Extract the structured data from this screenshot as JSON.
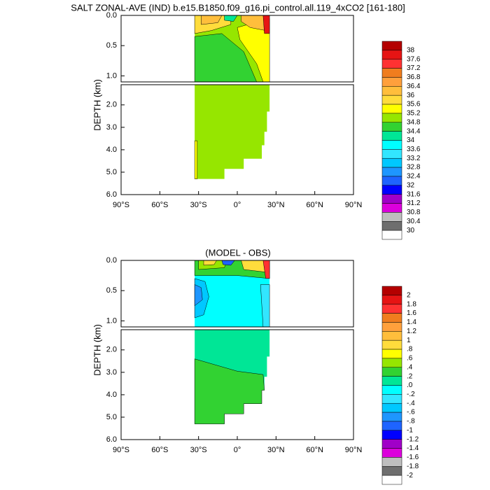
{
  "chart_data": [
    {
      "type": "contour",
      "title": "SALT ZONAL-AVE (IND) b.e15.B1850.f09_g16.pi_control.all.119_4xCO2 [161-180]",
      "ylabel": "DEPTH (km)",
      "xlim": [
        -90,
        90
      ],
      "xticks": [
        {
          "value": -90,
          "label": "90°S"
        },
        {
          "value": -60,
          "label": "60°S"
        },
        {
          "value": -30,
          "label": "30°S"
        },
        {
          "value": 0,
          "label": "0°"
        },
        {
          "value": 30,
          "label": "30°N"
        },
        {
          "value": 60,
          "label": "60°N"
        },
        {
          "value": 90,
          "label": "90°N"
        }
      ],
      "panels": [
        {
          "ylim": [
            0,
            1.1
          ],
          "yticks": [
            {
              "value": 0,
              "label": "0.0"
            },
            {
              "value": 0.5,
              "label": "0.5"
            },
            {
              "value": 1,
              "label": "1.0"
            }
          ]
        },
        {
          "ylim": [
            1.1,
            6
          ],
          "yticks": [
            {
              "value": 2,
              "label": "2.0"
            },
            {
              "value": 3,
              "label": "3.0"
            },
            {
              "value": 4,
              "label": "4.0"
            },
            {
              "value": 5,
              "label": "5.0"
            },
            {
              "value": 6,
              "label": "6.0"
            }
          ]
        }
      ],
      "field_values": [
        35.0,
        35.0,
        34.6,
        35.4,
        35.8,
        36.2,
        36.2,
        37.8,
        34.2,
        35.4
      ],
      "colorbar": {
        "levels": [
          38,
          37.6,
          37.2,
          36.8,
          36.4,
          36,
          35.6,
          35.2,
          34.8,
          34.4,
          34,
          33.6,
          33.2,
          32.8,
          32.4,
          32,
          31.6,
          31.2,
          30.8,
          30.4,
          30
        ],
        "colors": [
          "#b40000",
          "#e61414",
          "#ff3232",
          "#f07d1e",
          "#ffa03c",
          "#ffbe3c",
          "#ffdc3c",
          "#ffff00",
          "#96e600",
          "#32d232",
          "#00e696",
          "#00ffff",
          "#32e6ff",
          "#00c8ff",
          "#1e96ff",
          "#1e64ff",
          "#0000ff",
          "#a000c8",
          "#dc00dc",
          "#bebebe",
          "#6e6e6e",
          "#ffffff"
        ]
      }
    },
    {
      "type": "contour",
      "title": "(MODEL - OBS)",
      "ylabel": "DEPTH (km)",
      "xlim": [
        -90,
        90
      ],
      "xticks": [
        {
          "value": -90,
          "label": "90°S"
        },
        {
          "value": -60,
          "label": "60°S"
        },
        {
          "value": -30,
          "label": "30°S"
        },
        {
          "value": 0,
          "label": "0°"
        },
        {
          "value": 30,
          "label": "30°N"
        },
        {
          "value": 60,
          "label": "60°N"
        },
        {
          "value": 90,
          "label": "90°N"
        }
      ],
      "panels": [
        {
          "ylim": [
            0,
            1.1
          ],
          "yticks": [
            {
              "value": 0,
              "label": "0.0"
            },
            {
              "value": 0.5,
              "label": "0.5"
            },
            {
              "value": 1,
              "label": "1.0"
            }
          ]
        },
        {
          "ylim": [
            1.1,
            6
          ],
          "yticks": [
            {
              "value": 2,
              "label": "2.0"
            },
            {
              "value": 3,
              "label": "3.0"
            },
            {
              "value": 4,
              "label": "4.0"
            },
            {
              "value": 5,
              "label": "5.0"
            },
            {
              "value": 6,
              "label": "6.0"
            }
          ]
        }
      ],
      "field_values": [
        -0.1,
        0.1,
        0.3,
        -0.5,
        -0.7,
        0.3,
        0.5,
        0.9,
        -0.9,
        0.9,
        1.7,
        -0.3
      ],
      "colorbar": {
        "levels": [
          2,
          1.8,
          1.6,
          1.4,
          1.2,
          1,
          {
            "value": 0.8,
            "label": ".8"
          },
          {
            "value": 0.6,
            "label": ".6"
          },
          {
            "value": 0.4,
            "label": ".4"
          },
          {
            "value": 0.2,
            "label": ".2"
          },
          {
            "value": 0,
            "label": ".0"
          },
          {
            "value": -0.2,
            "label": "-.2"
          },
          {
            "value": -0.4,
            "label": "-.4"
          },
          {
            "value": -0.6,
            "label": "-.6"
          },
          {
            "value": -0.8,
            "label": "-.8"
          },
          -1,
          -1.2,
          -1.4,
          -1.6,
          -1.8,
          -2
        ],
        "colors": [
          "#b40000",
          "#e61414",
          "#ff3232",
          "#f07d1e",
          "#ffa03c",
          "#ffbe3c",
          "#ffdc3c",
          "#ffff00",
          "#96e600",
          "#32d232",
          "#00e696",
          "#00ffff",
          "#32e6ff",
          "#00c8ff",
          "#1e96ff",
          "#1e64ff",
          "#0000ff",
          "#a000c8",
          "#dc00dc",
          "#bebebe",
          "#6e6e6e",
          "#ffffff"
        ]
      }
    }
  ]
}
